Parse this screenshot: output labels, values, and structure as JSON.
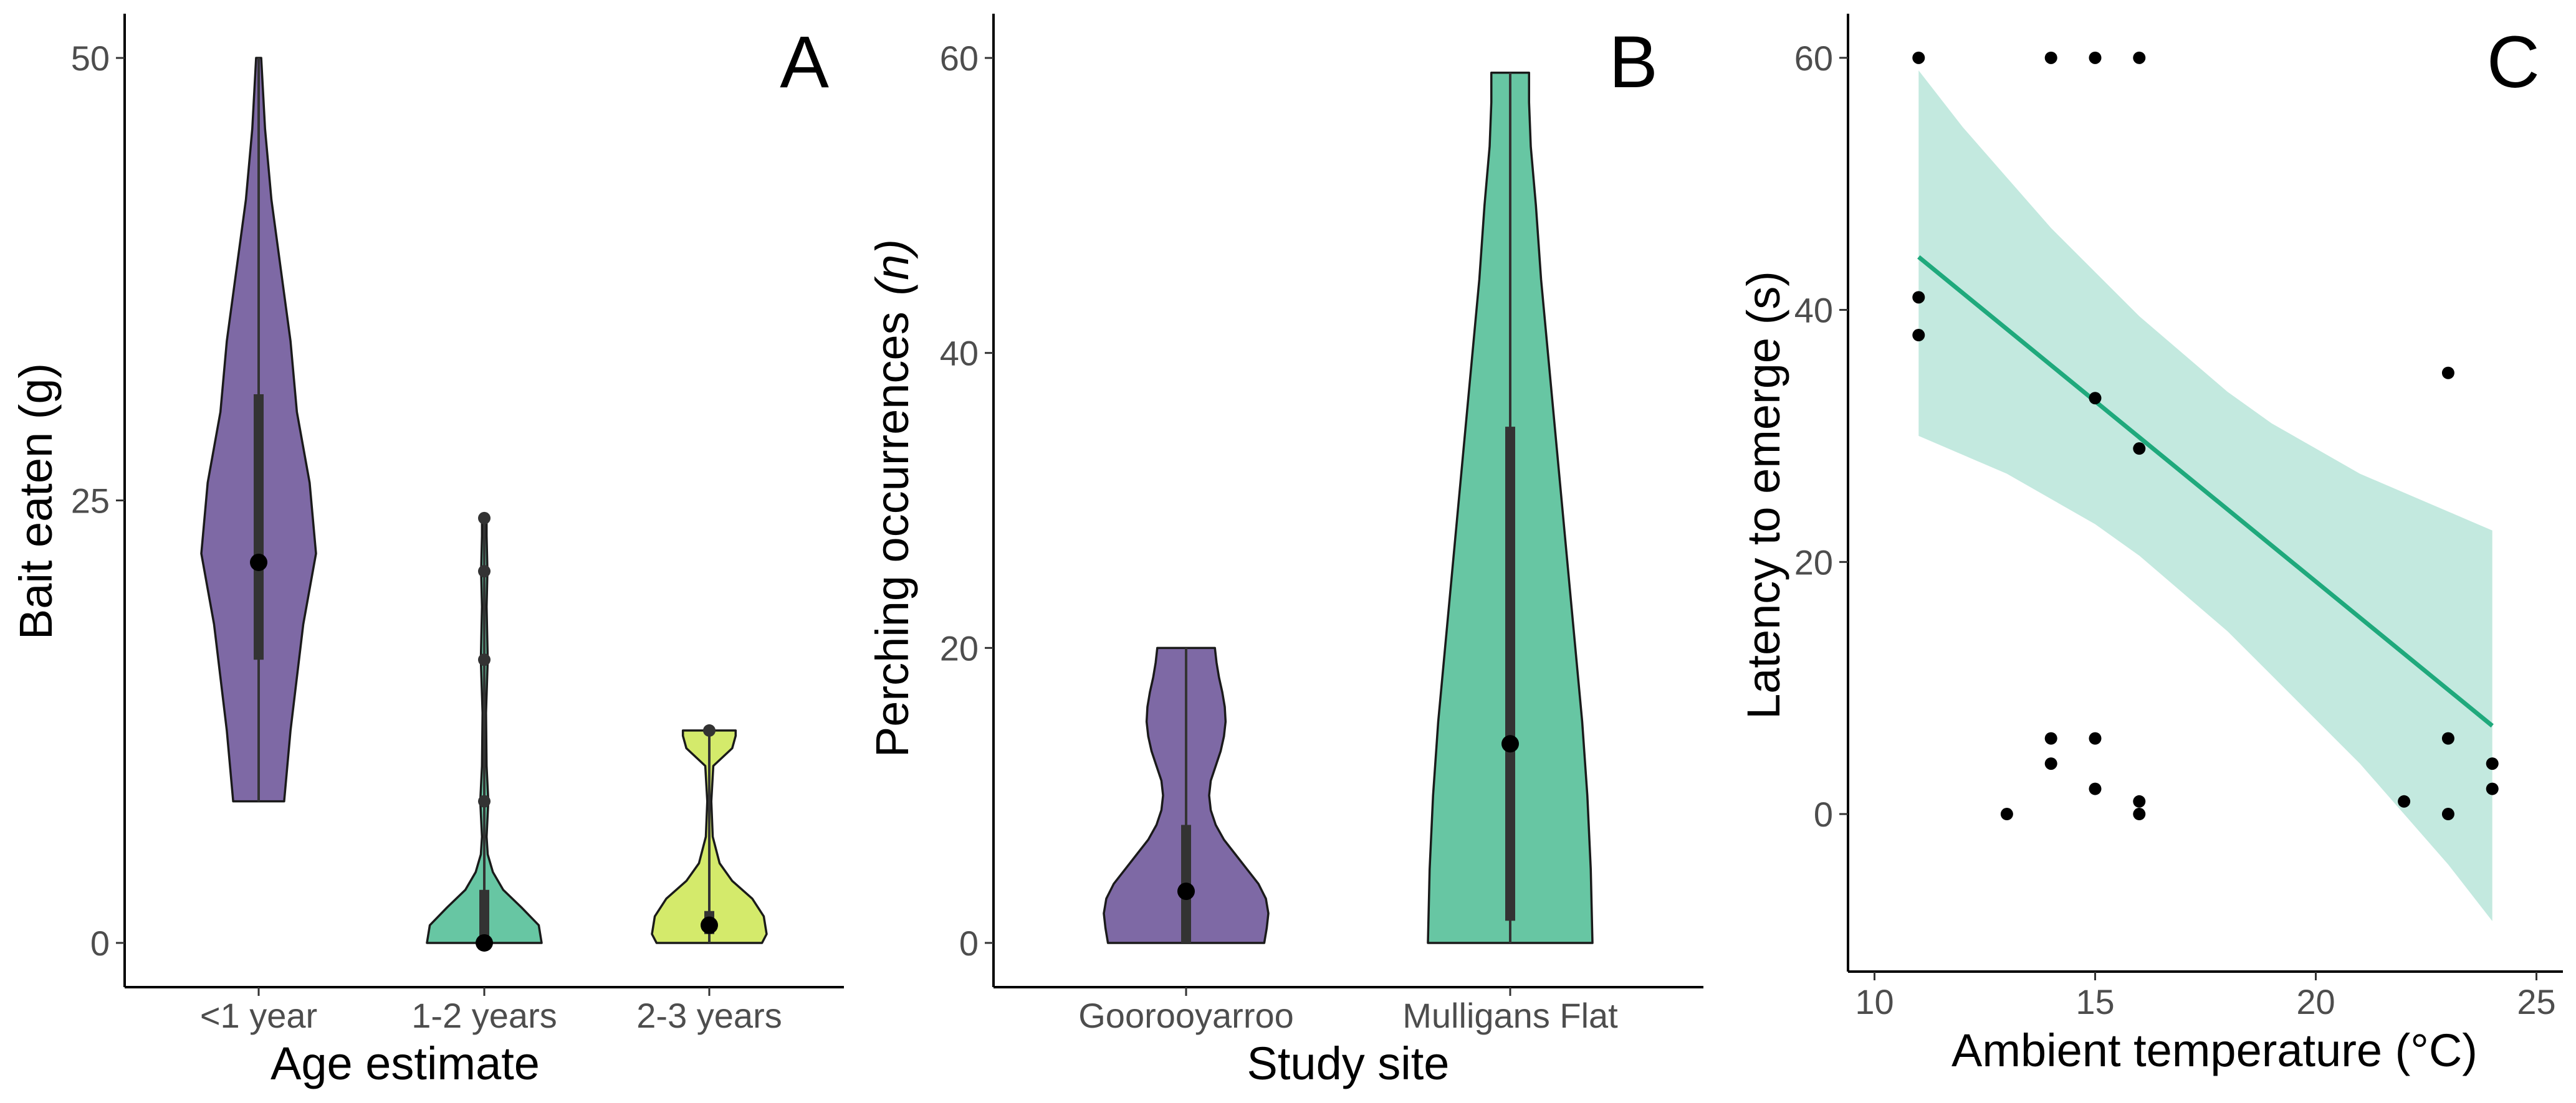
{
  "colors": {
    "purple": "#7e69a5",
    "teal": "#67c6a3",
    "yellowgreen": "#d4ea6b",
    "fit_line": "#1fa97c",
    "band": "#c3e9df",
    "box": "#333333"
  },
  "chart_data": [
    {
      "type": "violin",
      "panel_label": "A",
      "xlabel": "Age estimate",
      "ylabel": "Bait eaten (g)",
      "ylim": [
        -2.5,
        52.5
      ],
      "yticks": [
        0,
        25,
        50
      ],
      "categories": [
        "<1 year",
        "1-2 years",
        "2-3 years"
      ],
      "groups": [
        {
          "name": "<1 year",
          "color": "purple",
          "median": 21.5,
          "q1": 16,
          "q3": 31,
          "min": 8,
          "max": 50,
          "density": [
            [
              8,
              0.04
            ],
            [
              12,
              0.05
            ],
            [
              18,
              0.07
            ],
            [
              22,
              0.09
            ],
            [
              26,
              0.08
            ],
            [
              30,
              0.06
            ],
            [
              34,
              0.05
            ],
            [
              38,
              0.035
            ],
            [
              42,
              0.02
            ],
            [
              46,
              0.01
            ],
            [
              50,
              0.004
            ]
          ],
          "points": []
        },
        {
          "name": "1-2 years",
          "color": "teal",
          "median": 0,
          "q1": 0,
          "q3": 3,
          "min": 0,
          "max": 24,
          "density": [
            [
              0,
              1.0
            ],
            [
              1,
              0.95
            ],
            [
              2,
              0.65
            ],
            [
              3,
              0.33
            ],
            [
              4,
              0.15
            ],
            [
              5,
              0.06
            ],
            [
              6,
              0.04
            ],
            [
              8,
              0.07
            ],
            [
              10,
              0.04
            ],
            [
              13,
              0.03
            ],
            [
              16,
              0.06
            ],
            [
              19,
              0.04
            ],
            [
              21,
              0.055
            ],
            [
              23,
              0.04
            ],
            [
              24,
              0.04
            ]
          ],
          "points": [
            24,
            21,
            16,
            8,
            0
          ]
        },
        {
          "name": "2-3 years",
          "color": "yellowgreen",
          "median": 1,
          "q1": 0.5,
          "q3": 1.8,
          "min": 0,
          "max": 12,
          "density": [
            [
              0,
              0.92
            ],
            [
              0.5,
              1.0
            ],
            [
              1.5,
              0.95
            ],
            [
              2.5,
              0.75
            ],
            [
              3.5,
              0.4
            ],
            [
              4.5,
              0.18
            ],
            [
              6,
              0.06
            ],
            [
              8,
              0.035
            ],
            [
              10,
              0.07
            ],
            [
              11,
              0.4
            ],
            [
              11.7,
              0.46
            ],
            [
              12,
              0.46
            ]
          ],
          "points": [
            12,
            1
          ]
        }
      ]
    },
    {
      "type": "violin",
      "panel_label": "B",
      "xlabel": "Study site",
      "ylabel": "Perching occurrences",
      "ylabel_italic": "(n)",
      "ylim": [
        -3,
        63
      ],
      "yticks": [
        0,
        20,
        40,
        60
      ],
      "categories": [
        "Goorooyarroo",
        "Mulligans Flat"
      ],
      "groups": [
        {
          "name": "Goorooyarroo",
          "color": "purple",
          "median": 3.5,
          "q1": 0,
          "q3": 8,
          "min": 0,
          "max": 20,
          "density": [
            [
              0,
              0.95
            ],
            [
              1,
              0.98
            ],
            [
              2,
              1.0
            ],
            [
              3,
              0.97
            ],
            [
              4,
              0.88
            ],
            [
              5,
              0.74
            ],
            [
              6,
              0.6
            ],
            [
              7,
              0.46
            ],
            [
              8,
              0.36
            ],
            [
              9,
              0.3
            ],
            [
              10,
              0.28
            ],
            [
              11,
              0.3
            ],
            [
              12,
              0.36
            ],
            [
              13,
              0.42
            ],
            [
              14,
              0.46
            ],
            [
              15,
              0.48
            ],
            [
              16,
              0.47
            ],
            [
              17,
              0.44
            ],
            [
              18,
              0.4
            ],
            [
              19,
              0.37
            ],
            [
              20,
              0.35
            ]
          ],
          "points": []
        },
        {
          "name": "Mulligans Flat",
          "color": "teal",
          "median": 13.5,
          "q1": 1.5,
          "q3": 35,
          "min": 0,
          "max": 59,
          "density": [
            [
              0,
              0.48
            ],
            [
              5,
              0.47
            ],
            [
              10,
              0.45
            ],
            [
              15,
              0.42
            ],
            [
              20,
              0.38
            ],
            [
              25,
              0.34
            ],
            [
              30,
              0.3
            ],
            [
              35,
              0.26
            ],
            [
              40,
              0.22
            ],
            [
              45,
              0.18
            ],
            [
              50,
              0.15
            ],
            [
              54,
              0.12
            ],
            [
              57,
              0.11
            ],
            [
              59,
              0.11
            ]
          ],
          "points": []
        }
      ]
    },
    {
      "type": "scatter",
      "panel_label": "C",
      "xlabel": "Ambient temperature (°C)",
      "ylabel": "Latency to emerge (s)",
      "xlim": [
        9.4,
        25.6
      ],
      "ylim": [
        -12.5,
        63.5
      ],
      "xticks": [
        10,
        15,
        20,
        25
      ],
      "yticks": [
        0,
        20,
        40,
        60
      ],
      "points": [
        {
          "x": 11,
          "y": 60
        },
        {
          "x": 14,
          "y": 60
        },
        {
          "x": 15,
          "y": 60
        },
        {
          "x": 16,
          "y": 60
        },
        {
          "x": 11,
          "y": 41
        },
        {
          "x": 11,
          "y": 38
        },
        {
          "x": 15,
          "y": 33
        },
        {
          "x": 16,
          "y": 29
        },
        {
          "x": 23,
          "y": 35
        },
        {
          "x": 14,
          "y": 6
        },
        {
          "x": 14,
          "y": 4
        },
        {
          "x": 15,
          "y": 6
        },
        {
          "x": 15,
          "y": 2
        },
        {
          "x": 13,
          "y": 0
        },
        {
          "x": 16,
          "y": 1
        },
        {
          "x": 16,
          "y": 0
        },
        {
          "x": 22,
          "y": 1
        },
        {
          "x": 23,
          "y": 6
        },
        {
          "x": 23,
          "y": 0
        },
        {
          "x": 24,
          "y": 4
        },
        {
          "x": 24,
          "y": 2
        }
      ],
      "fit": {
        "x": [
          11,
          24
        ],
        "y": [
          44.2,
          7
        ]
      },
      "confidence_band": {
        "x": [
          11,
          12,
          13,
          14,
          15,
          16,
          17,
          18,
          19,
          20,
          21,
          22,
          23,
          24
        ],
        "upper": [
          59,
          54.5,
          50.5,
          46.5,
          43,
          39.5,
          36.5,
          33.5,
          31,
          29,
          27,
          25.5,
          24,
          22.5
        ],
        "lower": [
          30,
          28.5,
          27,
          25,
          23,
          20.5,
          17.5,
          14.5,
          11,
          7.5,
          4,
          0,
          -4,
          -8.5
        ]
      }
    }
  ]
}
